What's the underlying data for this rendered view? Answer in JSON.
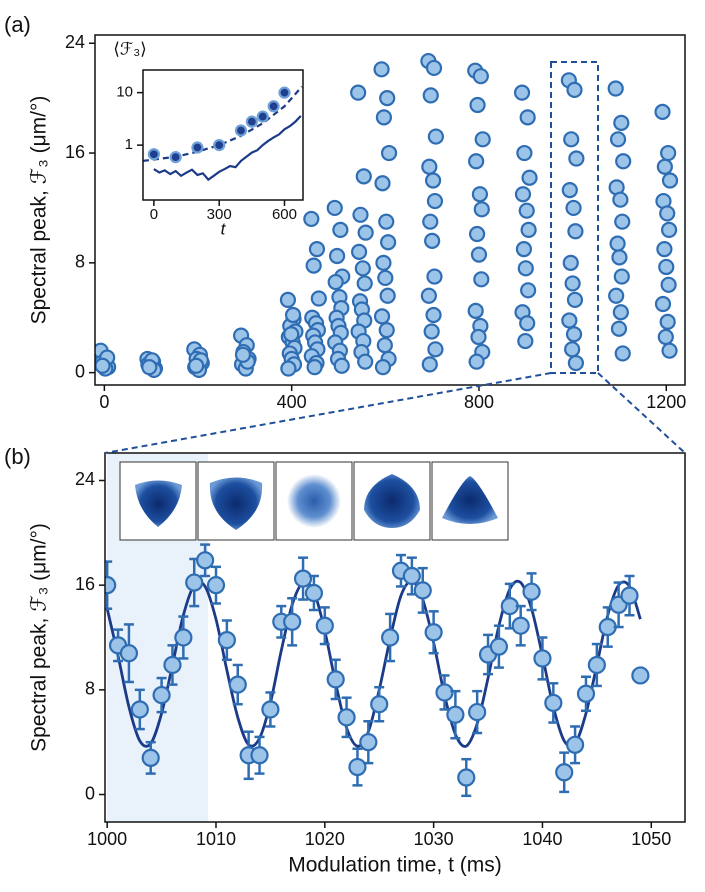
{
  "chart_data": [
    {
      "type": "scatter",
      "panel_label": "(a)",
      "ylabel": "Spectral peak, ℱ₃ (μm/°)",
      "xlim": [
        -20,
        1240
      ],
      "ylim": [
        -0.9,
        24.6
      ],
      "xticks": [
        0,
        400,
        800,
        1200
      ],
      "yticks": [
        0,
        8,
        16,
        24
      ],
      "series": [
        {
          "style": "markers",
          "color": "#9cc3e8",
          "edgecolor": "#2f6db3",
          "x": [
            -8,
            4,
            -3,
            8,
            -6,
            2,
            6,
            -4
          ],
          "values": [
            1.6,
            0.9,
            0.6,
            0.4,
            0.7,
            0.3,
            1.1,
            0.5
          ]
        },
        {
          "style": "markers",
          "color": "#9cc3e8",
          "edgecolor": "#2f6db3",
          "x": [
            92,
            104,
            97,
            108,
            94,
            102,
            106,
            96
          ],
          "values": [
            1.0,
            0.8,
            0.5,
            0.3,
            0.6,
            0.9,
            0.2,
            0.4
          ]
        },
        {
          "style": "markers",
          "color": "#9cc3e8",
          "edgecolor": "#2f6db3",
          "x": [
            192,
            204,
            197,
            208,
            194,
            202,
            206,
            196
          ],
          "values": [
            1.7,
            1.3,
            1.0,
            0.7,
            0.4,
            0.2,
            0.9,
            0.5
          ]
        },
        {
          "style": "markers",
          "color": "#9cc3e8",
          "edgecolor": "#2f6db3",
          "x": [
            292,
            304,
            297,
            308,
            294,
            302,
            306,
            296
          ],
          "values": [
            2.7,
            2.0,
            1.5,
            1.0,
            0.6,
            0.3,
            0.8,
            1.3
          ]
        },
        {
          "style": "markers",
          "color": "#9cc3e8",
          "edgecolor": "#2f6db3",
          "x": [
            392,
            404,
            397,
            408,
            394,
            402,
            406,
            396,
            400,
            405,
            393,
            403,
            399
          ],
          "values": [
            5.3,
            3.9,
            3.4,
            3.0,
            2.6,
            2.2,
            1.8,
            1.4,
            1.0,
            0.6,
            0.3,
            4.2,
            2.8
          ]
        },
        {
          "style": "markers",
          "color": "#9cc3e8",
          "edgecolor": "#2f6db3",
          "x": [
            442,
            454,
            447,
            458,
            444,
            452,
            456,
            446,
            450,
            455,
            443,
            453,
            449
          ],
          "values": [
            11.2,
            9.0,
            7.8,
            5.4,
            4.0,
            3.6,
            3.1,
            2.7,
            2.2,
            1.7,
            1.2,
            0.7,
            0.4
          ]
        },
        {
          "style": "markers",
          "color": "#9cc3e8",
          "edgecolor": "#2f6db3",
          "x": [
            492,
            504,
            497,
            508,
            494,
            502,
            506,
            496,
            500,
            505,
            493,
            503,
            499,
            507
          ],
          "values": [
            12.0,
            10.4,
            8.5,
            7.0,
            6.6,
            5.5,
            4.7,
            4.0,
            3.4,
            2.9,
            2.2,
            1.6,
            1.0,
            0.5
          ]
        },
        {
          "style": "markers",
          "color": "#9cc3e8",
          "edgecolor": "#2f6db3",
          "x": [
            542,
            554,
            547,
            558,
            544,
            552,
            556,
            546,
            550,
            555,
            543,
            553,
            549,
            557
          ],
          "values": [
            20.4,
            14.3,
            11.5,
            10.2,
            8.8,
            7.6,
            6.5,
            5.2,
            4.6,
            3.8,
            3.0,
            2.3,
            1.5,
            0.8
          ]
        },
        {
          "style": "markers",
          "color": "#9cc3e8",
          "edgecolor": "#2f6db3",
          "x": [
            592,
            604,
            597,
            608,
            594,
            602,
            606,
            596,
            600,
            605,
            593,
            603,
            599,
            607,
            595
          ],
          "values": [
            22.1,
            20.0,
            18.6,
            16.0,
            13.8,
            11.0,
            9.5,
            8.0,
            6.9,
            5.6,
            4.1,
            3.1,
            2.0,
            1.0,
            0.4
          ]
        },
        {
          "style": "markers",
          "color": "#9cc3e8",
          "edgecolor": "#2f6db3",
          "x": [
            692,
            704,
            697,
            708,
            694,
            702,
            706,
            696,
            700,
            705,
            693,
            703,
            699,
            707,
            695
          ],
          "values": [
            22.7,
            22.2,
            20.2,
            17.2,
            15.0,
            14.0,
            12.5,
            11.0,
            9.6,
            7.0,
            5.6,
            4.2,
            3.0,
            1.7,
            0.6
          ]
        },
        {
          "style": "markers",
          "color": "#9cc3e8",
          "edgecolor": "#2f6db3",
          "x": [
            792,
            804,
            797,
            808,
            794,
            802,
            806,
            796,
            800,
            805,
            793,
            803,
            799,
            807,
            795
          ],
          "values": [
            22.0,
            21.6,
            19.5,
            17.0,
            15.4,
            13.0,
            11.9,
            10.1,
            8.6,
            6.8,
            4.5,
            3.4,
            2.6,
            1.5,
            0.8
          ]
        },
        {
          "style": "markers",
          "color": "#9cc3e8",
          "edgecolor": "#2f6db3",
          "x": [
            892,
            904,
            897,
            908,
            894,
            902,
            906,
            896,
            900,
            905,
            893,
            903,
            899
          ],
          "values": [
            20.4,
            18.6,
            16.0,
            14.2,
            13.0,
            11.8,
            10.4,
            9.0,
            7.6,
            6.0,
            4.4,
            3.6,
            2.3
          ]
        },
        {
          "style": "markers",
          "color": "#9cc3e8",
          "edgecolor": "#2f6db3",
          "x": [
            992,
            1004,
            997,
            1008,
            994,
            1002,
            1006,
            996,
            1000,
            1005,
            993,
            1003,
            999,
            1007
          ],
          "values": [
            21.3,
            20.6,
            17.0,
            15.6,
            13.3,
            12.0,
            10.3,
            8.0,
            6.5,
            5.3,
            3.8,
            2.8,
            1.7,
            0.7
          ]
        },
        {
          "style": "markers",
          "color": "#9cc3e8",
          "edgecolor": "#2f6db3",
          "x": [
            1092,
            1104,
            1097,
            1108,
            1094,
            1102,
            1106,
            1096,
            1100,
            1105,
            1093,
            1103,
            1099,
            1107
          ],
          "values": [
            20.7,
            18.2,
            17.0,
            15.4,
            13.5,
            12.6,
            11.0,
            9.4,
            8.4,
            7.0,
            5.6,
            4.4,
            3.2,
            1.4
          ]
        },
        {
          "style": "markers",
          "color": "#9cc3e8",
          "edgecolor": "#2f6db3",
          "x": [
            1192,
            1204,
            1197,
            1208,
            1194,
            1202,
            1206,
            1196,
            1200,
            1205,
            1193,
            1203,
            1199,
            1207
          ],
          "values": [
            19.0,
            16.0,
            15.0,
            14.0,
            12.5,
            11.6,
            10.4,
            9.0,
            7.7,
            6.4,
            5.0,
            3.7,
            2.6,
            1.6
          ]
        }
      ]
    },
    {
      "type": "scatter",
      "title": "⟨ℱ₃⟩",
      "xlabel": "t",
      "ylog": true,
      "xlim": [
        -50,
        685
      ],
      "ylim": [
        0.09,
        27
      ],
      "xticks": [
        0,
        300,
        600
      ],
      "yticks": [
        1,
        10
      ],
      "series": [
        {
          "style": "dashed",
          "color": "#1b3a88",
          "x": [
            -50,
            100,
            200,
            300,
            400,
            500,
            600,
            680
          ],
          "values": [
            0.5,
            0.6,
            0.75,
            1.0,
            1.5,
            2.6,
            5.5,
            13
          ]
        },
        {
          "style": "line",
          "color": "#1b3a88",
          "x": [
            0,
            25,
            50,
            75,
            100,
            125,
            150,
            175,
            200,
            225,
            250,
            275,
            300,
            325,
            350,
            375,
            400,
            425,
            450,
            475,
            500,
            525,
            550,
            575,
            600,
            625,
            650,
            675
          ],
          "values": [
            0.35,
            0.3,
            0.33,
            0.28,
            0.32,
            0.26,
            0.3,
            0.34,
            0.27,
            0.29,
            0.22,
            0.26,
            0.31,
            0.35,
            0.4,
            0.38,
            0.5,
            0.6,
            0.72,
            0.8,
            1.0,
            1.2,
            1.4,
            1.6,
            2.0,
            2.3,
            2.8,
            3.6
          ]
        },
        {
          "style": "markers",
          "color": "#1f3f8f",
          "edgecolor": "#6fa0d8",
          "x": [
            0,
            100,
            200,
            300,
            400,
            450,
            500,
            550,
            600
          ],
          "values": [
            0.67,
            0.59,
            0.9,
            1.0,
            1.9,
            2.8,
            3.5,
            5.5,
            10
          ]
        }
      ]
    },
    {
      "type": "scatter",
      "panel_label": "(b)",
      "ylabel": "Spectral peak, ℱ₃ (μm/°)",
      "xlabel": "Modulation time, t (ms)",
      "xlim": [
        999.8,
        1053.1
      ],
      "ylim": [
        -2.1,
        26.1
      ],
      "xticks": [
        1000,
        1010,
        1020,
        1030,
        1040,
        1050
      ],
      "yticks": [
        0,
        8,
        16,
        24
      ],
      "series": [
        {
          "style": "curve",
          "color": "#1b3a88",
          "x": [
            1000,
            1001,
            1002,
            1003,
            1004,
            1005,
            1006,
            1007,
            1008,
            1009,
            1010,
            1011,
            1012,
            1013,
            1014,
            1015,
            1016,
            1017,
            1018,
            1019,
            1020,
            1021,
            1022,
            1023,
            1024,
            1025,
            1026,
            1027,
            1028,
            1029,
            1030,
            1031,
            1032,
            1033,
            1034,
            1035,
            1036,
            1037,
            1038,
            1039,
            1040,
            1041,
            1042,
            1043,
            1044,
            1045,
            1046,
            1047,
            1048,
            1049
          ],
          "values": [
            14.2,
            10.6,
            6.7,
            4.1,
            3.9,
            6.2,
            9.9,
            13.7,
            16.0,
            15.9,
            13.4,
            9.5,
            5.9,
            3.8,
            4.3,
            7.0,
            11.0,
            14.5,
            16.2,
            15.5,
            12.5,
            8.5,
            5.1,
            3.7,
            4.8,
            8.0,
            11.9,
            15.2,
            16.3,
            14.9,
            11.6,
            7.6,
            4.6,
            3.7,
            5.4,
            8.9,
            12.9,
            15.7,
            16.2,
            14.2,
            10.6,
            6.7,
            4.1,
            3.9,
            6.2,
            9.9,
            13.7,
            16.0,
            15.9,
            13.4
          ]
        },
        {
          "style": "markers",
          "color": "#9cc3e8",
          "edgecolor": "#2f6db3",
          "x": [
            1000,
            1001,
            1002,
            1003,
            1004,
            1005,
            1006,
            1007,
            1008,
            1009,
            1010,
            1011,
            1012,
            1013,
            1014,
            1015,
            1016,
            1017,
            1018,
            1019,
            1020,
            1021,
            1022,
            1023,
            1024,
            1025,
            1026,
            1027,
            1028,
            1029,
            1030,
            1031,
            1032,
            1033,
            1034,
            1035,
            1036,
            1037,
            1038,
            1039,
            1040,
            1041,
            1042,
            1043,
            1044,
            1045,
            1046,
            1047,
            1048,
            1049
          ],
          "values": [
            16.0,
            11.4,
            10.8,
            6.5,
            2.8,
            7.6,
            9.9,
            12.0,
            16.2,
            17.9,
            16.0,
            11.8,
            8.4,
            3.0,
            3.0,
            6.5,
            13.2,
            13.2,
            16.5,
            15.4,
            12.9,
            8.8,
            5.9,
            2.1,
            4.0,
            6.9,
            12.0,
            17.1,
            16.7,
            15.6,
            12.4,
            7.8,
            6.1,
            1.3,
            6.3,
            10.7,
            11.3,
            14.4,
            12.9,
            15.5,
            10.4,
            7.0,
            1.7,
            3.8,
            7.7,
            9.9,
            12.8,
            14.5,
            15.2,
            9.1
          ],
          "errors": [
            1.8,
            1.2,
            2.2,
            1.5,
            1.2,
            1.3,
            1.5,
            1.6,
            1.8,
            1.2,
            1.4,
            1.5,
            1.5,
            1.8,
            1.4,
            1.3,
            1.2,
            1.8,
            1.6,
            1.3,
            1.4,
            1.5,
            1.5,
            1.4,
            1.6,
            1.3,
            1.8,
            1.2,
            1.4,
            1.7,
            1.6,
            1.3,
            1.8,
            1.4,
            1.6,
            1.5,
            1.6,
            1.7,
            1.5,
            1.4,
            1.6,
            1.5,
            1.5,
            1.4,
            1.3,
            1.6,
            1.5,
            1.7,
            1.5,
            null
          ]
        }
      ]
    }
  ]
}
